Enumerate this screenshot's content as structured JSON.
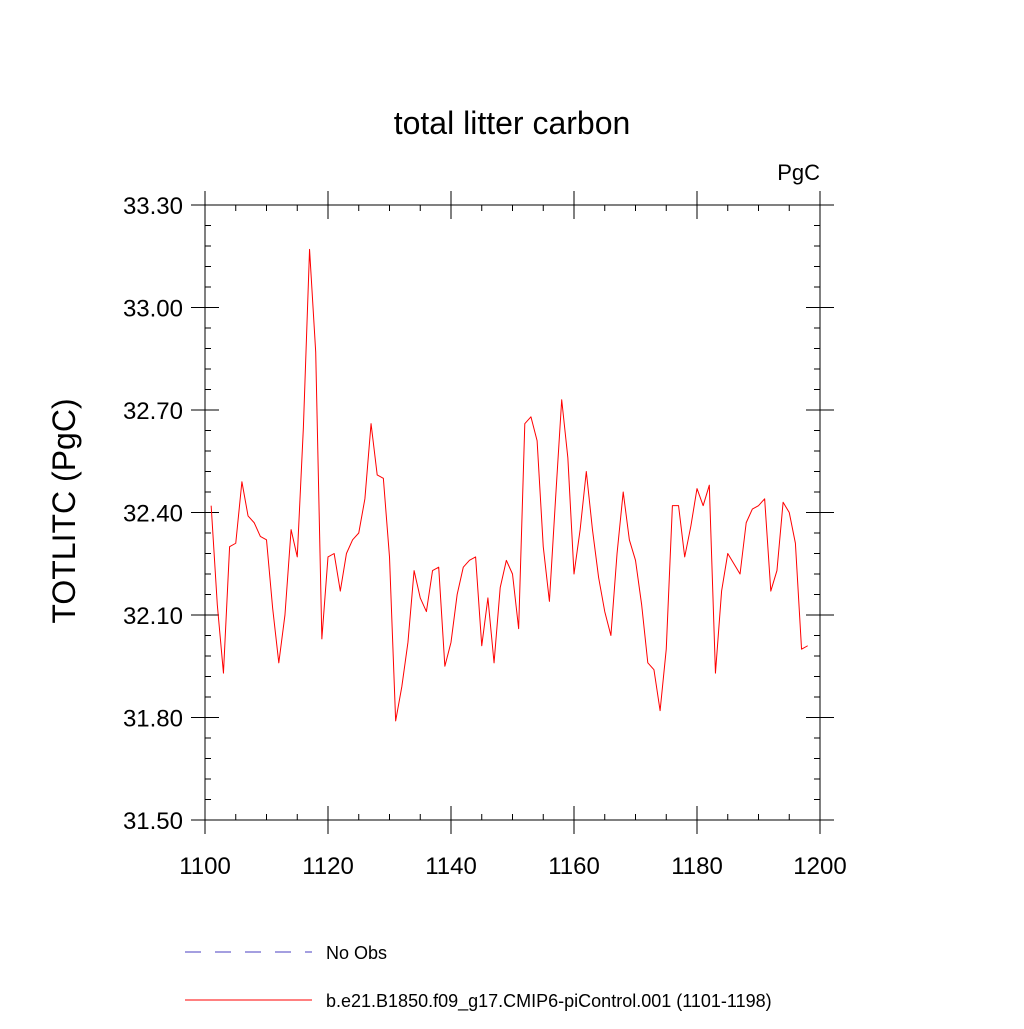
{
  "chart_data": {
    "type": "line",
    "title": "total litter carbon",
    "units": "PgC",
    "xlabel": "",
    "ylabel": "TOTLITC  (PgC)",
    "xlim": [
      1100,
      1200
    ],
    "ylim": [
      31.5,
      33.3
    ],
    "xticks": [
      1100,
      1120,
      1140,
      1160,
      1180,
      1200
    ],
    "xtick_labels": [
      "1100",
      "1120",
      "1140",
      "1160",
      "1180",
      "1200"
    ],
    "yticks": [
      31.5,
      31.8,
      32.1,
      32.4,
      32.7,
      33.0,
      33.3
    ],
    "ytick_labels": [
      "31.50",
      "31.80",
      "32.10",
      "32.40",
      "32.70",
      "33.00",
      "33.30"
    ],
    "grid": false,
    "legend_position": "bottom",
    "series": [
      {
        "name": "b.e21.B1850.f09_g17.CMIP6-piControl.001 (1101-1198)",
        "color": "#ff0000",
        "style": "solid",
        "x": [
          1101,
          1102,
          1103,
          1104,
          1105,
          1106,
          1107,
          1108,
          1109,
          1110,
          1111,
          1112,
          1113,
          1114,
          1115,
          1116,
          1117,
          1118,
          1119,
          1120,
          1121,
          1122,
          1123,
          1124,
          1125,
          1126,
          1127,
          1128,
          1129,
          1130,
          1131,
          1132,
          1133,
          1134,
          1135,
          1136,
          1137,
          1138,
          1139,
          1140,
          1141,
          1142,
          1143,
          1144,
          1145,
          1146,
          1147,
          1148,
          1149,
          1150,
          1151,
          1152,
          1153,
          1154,
          1155,
          1156,
          1157,
          1158,
          1159,
          1160,
          1161,
          1162,
          1163,
          1164,
          1165,
          1166,
          1167,
          1168,
          1169,
          1170,
          1171,
          1172,
          1173,
          1174,
          1175,
          1176,
          1177,
          1178,
          1179,
          1180,
          1181,
          1182,
          1183,
          1184,
          1185,
          1186,
          1187,
          1188,
          1189,
          1190,
          1191,
          1192,
          1193,
          1194,
          1195,
          1196,
          1197,
          1198
        ],
        "y": [
          32.42,
          32.13,
          31.93,
          32.3,
          32.31,
          32.49,
          32.39,
          32.37,
          32.33,
          32.32,
          32.12,
          31.96,
          32.1,
          32.35,
          32.27,
          32.65,
          33.17,
          32.87,
          32.03,
          32.27,
          32.28,
          32.17,
          32.28,
          32.32,
          32.34,
          32.44,
          32.66,
          32.51,
          32.5,
          32.27,
          31.79,
          31.89,
          32.02,
          32.23,
          32.15,
          32.11,
          32.23,
          32.24,
          31.95,
          32.02,
          32.16,
          32.24,
          32.26,
          32.27,
          32.01,
          32.15,
          31.96,
          32.18,
          32.26,
          32.22,
          32.06,
          32.66,
          32.68,
          32.61,
          32.3,
          32.14,
          32.44,
          32.73,
          32.56,
          32.22,
          32.35,
          32.52,
          32.35,
          32.21,
          32.11,
          32.04,
          32.28,
          32.46,
          32.32,
          32.26,
          32.13,
          31.96,
          31.94,
          31.82,
          32.0,
          32.42,
          32.42,
          32.27,
          32.36,
          32.47,
          32.42,
          32.48,
          31.93,
          32.17,
          32.28,
          32.25,
          32.22,
          32.37,
          32.41,
          32.42,
          32.44,
          32.17,
          32.23,
          32.43,
          32.4,
          32.31,
          32.0,
          32.01
        ]
      },
      {
        "name": "No Obs",
        "color": "#4a3fc0",
        "style": "dashed",
        "x": [],
        "y": []
      }
    ]
  }
}
